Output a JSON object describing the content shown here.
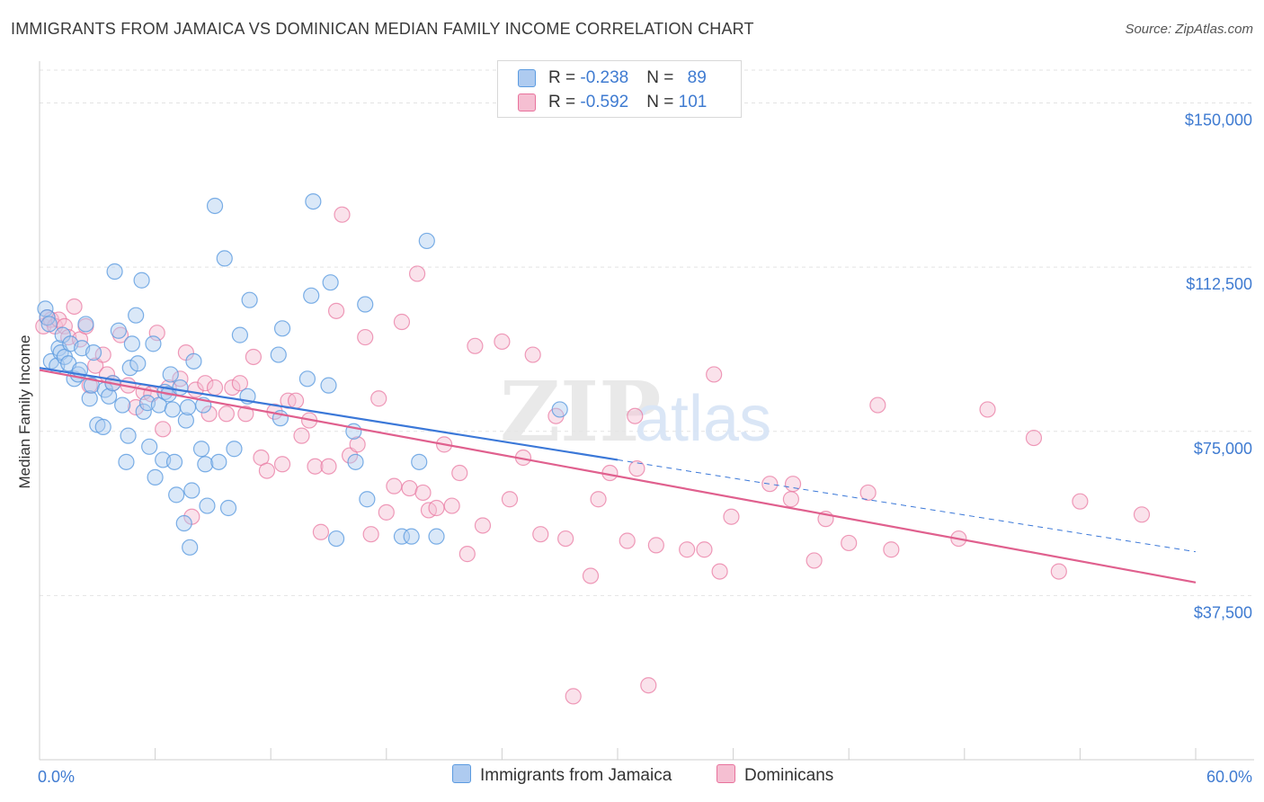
{
  "title": "IMMIGRANTS FROM JAMAICA VS DOMINICAN MEDIAN FAMILY INCOME CORRELATION CHART",
  "source": "Source: ZipAtlas.com",
  "colors": {
    "blue": "#5b9be0",
    "blue_fill": "#aecbf0",
    "pink": "#e8729c",
    "pink_fill": "#f5bfd2",
    "axis_text": "#3f7bd1",
    "grid": "#e0e0e0"
  },
  "legend": {
    "rows": [
      {
        "r_label": "R = ",
        "r_value": "-0.238",
        "n_label": "N = ",
        "n_value": "89"
      },
      {
        "r_label": "R = ",
        "r_value": "-0.592",
        "n_label": "N = ",
        "n_value": "101"
      }
    ]
  },
  "bottom_legend": {
    "series1": "Immigrants from Jamaica",
    "series2": "Dominicans"
  },
  "watermark": {
    "zip": "ZIP",
    "atlas": "atlas"
  },
  "chart_data": {
    "type": "scatter",
    "title": "IMMIGRANTS FROM JAMAICA VS DOMINICAN MEDIAN FAMILY INCOME CORRELATION CHART",
    "xlabel": "",
    "ylabel": "Median Family Income",
    "xlim": [
      0,
      60
    ],
    "ylim": [
      0,
      157500
    ],
    "x_tick_labels": [
      "0.0%",
      "60.0%"
    ],
    "y_ticks": [
      37500,
      75000,
      112500,
      150000
    ],
    "y_tick_labels": [
      "$37,500",
      "$75,000",
      "$112,500",
      "$150,000"
    ],
    "grid": true,
    "series": [
      {
        "name": "Immigrants from Jamaica",
        "color": "#5b9be0",
        "R": -0.238,
        "N": 89,
        "trend": {
          "x": [
            0,
            30
          ],
          "y": [
            89500,
            68500
          ],
          "dashed_to": {
            "x": [
              30,
              60
            ],
            "y": [
              68500,
              47500
            ]
          }
        },
        "points": [
          [
            0.3,
            103.0
          ],
          [
            0.4,
            101.0
          ],
          [
            0.5,
            99.5
          ],
          [
            0.6,
            91.0
          ],
          [
            0.9,
            90.0
          ],
          [
            1.0,
            94.0
          ],
          [
            1.1,
            93.0
          ],
          [
            1.2,
            97.0
          ],
          [
            1.3,
            92.0
          ],
          [
            1.5,
            90.5
          ],
          [
            1.6,
            95.0
          ],
          [
            1.8,
            87.0
          ],
          [
            2.0,
            88.0
          ],
          [
            2.1,
            89.0
          ],
          [
            2.2,
            94.0
          ],
          [
            2.4,
            99.5
          ],
          [
            2.6,
            82.5
          ],
          [
            2.7,
            85.5
          ],
          [
            2.8,
            93.0
          ],
          [
            3.0,
            76.5
          ],
          [
            3.3,
            76.0
          ],
          [
            3.4,
            84.5
          ],
          [
            3.6,
            83.0
          ],
          [
            3.8,
            86.0
          ],
          [
            3.9,
            111.5
          ],
          [
            4.1,
            98.0
          ],
          [
            4.3,
            81.0
          ],
          [
            4.5,
            68.0
          ],
          [
            4.6,
            74.0
          ],
          [
            4.7,
            89.5
          ],
          [
            4.8,
            95.0
          ],
          [
            5.0,
            101.5
          ],
          [
            5.1,
            90.5
          ],
          [
            5.3,
            109.5
          ],
          [
            5.4,
            79.5
          ],
          [
            5.6,
            81.5
          ],
          [
            5.7,
            71.5
          ],
          [
            5.9,
            95.0
          ],
          [
            6.0,
            64.5
          ],
          [
            6.2,
            81.0
          ],
          [
            6.4,
            68.5
          ],
          [
            6.5,
            84.0
          ],
          [
            6.7,
            83.5
          ],
          [
            6.8,
            88.0
          ],
          [
            6.9,
            80.0
          ],
          [
            7.0,
            68.0
          ],
          [
            7.1,
            60.5
          ],
          [
            7.3,
            85.0
          ],
          [
            7.5,
            54.0
          ],
          [
            7.6,
            77.5
          ],
          [
            7.7,
            80.5
          ],
          [
            7.8,
            48.5
          ],
          [
            7.9,
            61.5
          ],
          [
            8.0,
            91.0
          ],
          [
            8.4,
            71.0
          ],
          [
            8.5,
            81.0
          ],
          [
            8.6,
            67.5
          ],
          [
            8.7,
            58.0
          ],
          [
            9.1,
            126.5
          ],
          [
            9.3,
            68.0
          ],
          [
            9.6,
            114.5
          ],
          [
            9.8,
            57.5
          ],
          [
            10.1,
            71.0
          ],
          [
            10.4,
            97.0
          ],
          [
            10.9,
            105.0
          ],
          [
            10.8,
            83.0
          ],
          [
            12.4,
            92.5
          ],
          [
            12.5,
            78.0
          ],
          [
            12.6,
            98.5
          ],
          [
            13.9,
            87.0
          ],
          [
            14.1,
            106.0
          ],
          [
            14.2,
            127.5
          ],
          [
            15.0,
            85.5
          ],
          [
            15.1,
            109.0
          ],
          [
            15.4,
            50.5
          ],
          [
            16.3,
            75.0
          ],
          [
            16.4,
            68.0
          ],
          [
            16.9,
            104.0
          ],
          [
            17.0,
            59.5
          ],
          [
            18.8,
            51.0
          ],
          [
            19.3,
            51.0
          ],
          [
            19.7,
            68.0
          ],
          [
            20.1,
            118.5
          ],
          [
            20.6,
            51.0
          ],
          [
            27.0,
            80.0
          ]
        ]
      },
      {
        "name": "Dominicans",
        "color": "#e8729c",
        "R": -0.592,
        "N": 101,
        "trend": {
          "x": [
            0,
            60
          ],
          "y": [
            89000,
            40500
          ]
        },
        "points": [
          [
            0.2,
            99.0
          ],
          [
            0.4,
            101.0
          ],
          [
            0.6,
            100.5
          ],
          [
            0.8,
            99.0
          ],
          [
            1.0,
            100.5
          ],
          [
            1.3,
            99.0
          ],
          [
            1.5,
            96.5
          ],
          [
            1.8,
            103.5
          ],
          [
            2.1,
            96.0
          ],
          [
            2.4,
            99.0
          ],
          [
            2.6,
            85.5
          ],
          [
            2.9,
            90.0
          ],
          [
            3.3,
            92.5
          ],
          [
            3.5,
            88.0
          ],
          [
            3.8,
            86.0
          ],
          [
            4.2,
            97.0
          ],
          [
            4.6,
            85.5
          ],
          [
            5.0,
            80.5
          ],
          [
            5.4,
            84.0
          ],
          [
            5.8,
            83.5
          ],
          [
            6.1,
            97.5
          ],
          [
            6.4,
            75.5
          ],
          [
            6.7,
            85.0
          ],
          [
            7.3,
            87.0
          ],
          [
            7.6,
            93.0
          ],
          [
            7.9,
            55.5
          ],
          [
            8.1,
            84.5
          ],
          [
            8.6,
            86.0
          ],
          [
            8.8,
            79.0
          ],
          [
            9.1,
            85.0
          ],
          [
            9.7,
            79.0
          ],
          [
            10.0,
            85.0
          ],
          [
            10.4,
            86.0
          ],
          [
            10.7,
            79.0
          ],
          [
            11.1,
            92.0
          ],
          [
            11.5,
            69.0
          ],
          [
            11.8,
            66.0
          ],
          [
            12.2,
            79.5
          ],
          [
            12.6,
            67.5
          ],
          [
            12.9,
            82.0
          ],
          [
            13.3,
            82.0
          ],
          [
            13.6,
            74.0
          ],
          [
            14.0,
            77.5
          ],
          [
            14.3,
            67.0
          ],
          [
            14.6,
            52.0
          ],
          [
            15.0,
            67.0
          ],
          [
            15.4,
            102.5
          ],
          [
            15.7,
            124.5
          ],
          [
            16.1,
            69.5
          ],
          [
            16.5,
            72.0
          ],
          [
            16.9,
            96.5
          ],
          [
            17.2,
            51.5
          ],
          [
            17.6,
            82.5
          ],
          [
            18.0,
            56.5
          ],
          [
            18.4,
            62.5
          ],
          [
            18.8,
            100.0
          ],
          [
            19.2,
            62.0
          ],
          [
            19.6,
            111.0
          ],
          [
            19.9,
            61.0
          ],
          [
            20.2,
            57.0
          ],
          [
            20.6,
            57.5
          ],
          [
            21.0,
            72.0
          ],
          [
            21.4,
            58.0
          ],
          [
            21.8,
            65.5
          ],
          [
            22.2,
            47.0
          ],
          [
            22.6,
            94.5
          ],
          [
            23.0,
            53.5
          ],
          [
            24.0,
            95.5
          ],
          [
            24.4,
            59.5
          ],
          [
            25.1,
            69.0
          ],
          [
            25.6,
            92.5
          ],
          [
            26.0,
            51.5
          ],
          [
            26.8,
            78.5
          ],
          [
            27.3,
            50.5
          ],
          [
            27.7,
            14.5
          ],
          [
            28.6,
            42.0
          ],
          [
            29.0,
            59.5
          ],
          [
            29.6,
            65.5
          ],
          [
            30.5,
            50.0
          ],
          [
            30.9,
            78.5
          ],
          [
            31.0,
            66.5
          ],
          [
            31.6,
            17.0
          ],
          [
            32.0,
            49.0
          ],
          [
            33.6,
            48.0
          ],
          [
            34.5,
            48.0
          ],
          [
            35.0,
            88.0
          ],
          [
            35.3,
            43.0
          ],
          [
            35.9,
            55.5
          ],
          [
            37.9,
            63.0
          ],
          [
            39.0,
            59.5
          ],
          [
            39.1,
            63.0
          ],
          [
            40.2,
            45.5
          ],
          [
            40.8,
            55.0
          ],
          [
            42.0,
            49.5
          ],
          [
            43.0,
            61.0
          ],
          [
            43.5,
            81.0
          ],
          [
            44.2,
            48.0
          ],
          [
            47.7,
            50.5
          ],
          [
            49.2,
            80.0
          ],
          [
            51.6,
            73.5
          ],
          [
            52.9,
            43.0
          ],
          [
            54.0,
            59.0
          ],
          [
            57.2,
            56.0
          ]
        ]
      }
    ]
  }
}
